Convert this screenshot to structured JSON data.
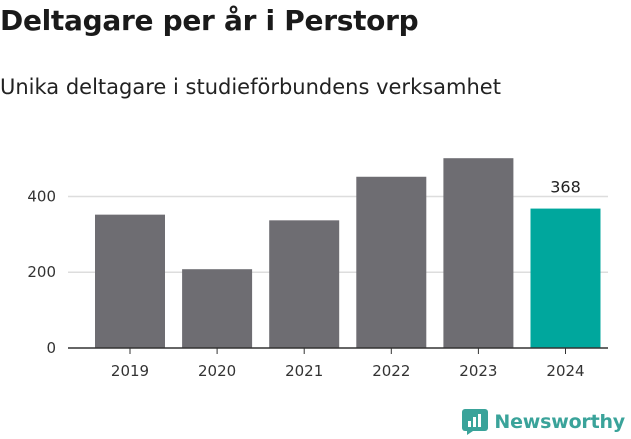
{
  "chart_data": {
    "type": "bar",
    "title": "Deltagare per år i Perstorp",
    "subtitle": "Unika deltagare i studieförbundens verksamhet",
    "categories": [
      "2019",
      "2020",
      "2021",
      "2022",
      "2023",
      "2024"
    ],
    "values": [
      352,
      208,
      337,
      452,
      501,
      368
    ],
    "highlight_index": 5,
    "highlight_label": "368",
    "ylim": [
      0,
      520
    ],
    "yticks": [
      0,
      200,
      400
    ],
    "grid": true,
    "colors": {
      "bar": "#6e6d72",
      "highlight": "#00a79d",
      "grid": "#dddddd",
      "axis": "#333333"
    }
  },
  "brand": {
    "name": "Newsworthy",
    "color": "#3aa39a"
  }
}
